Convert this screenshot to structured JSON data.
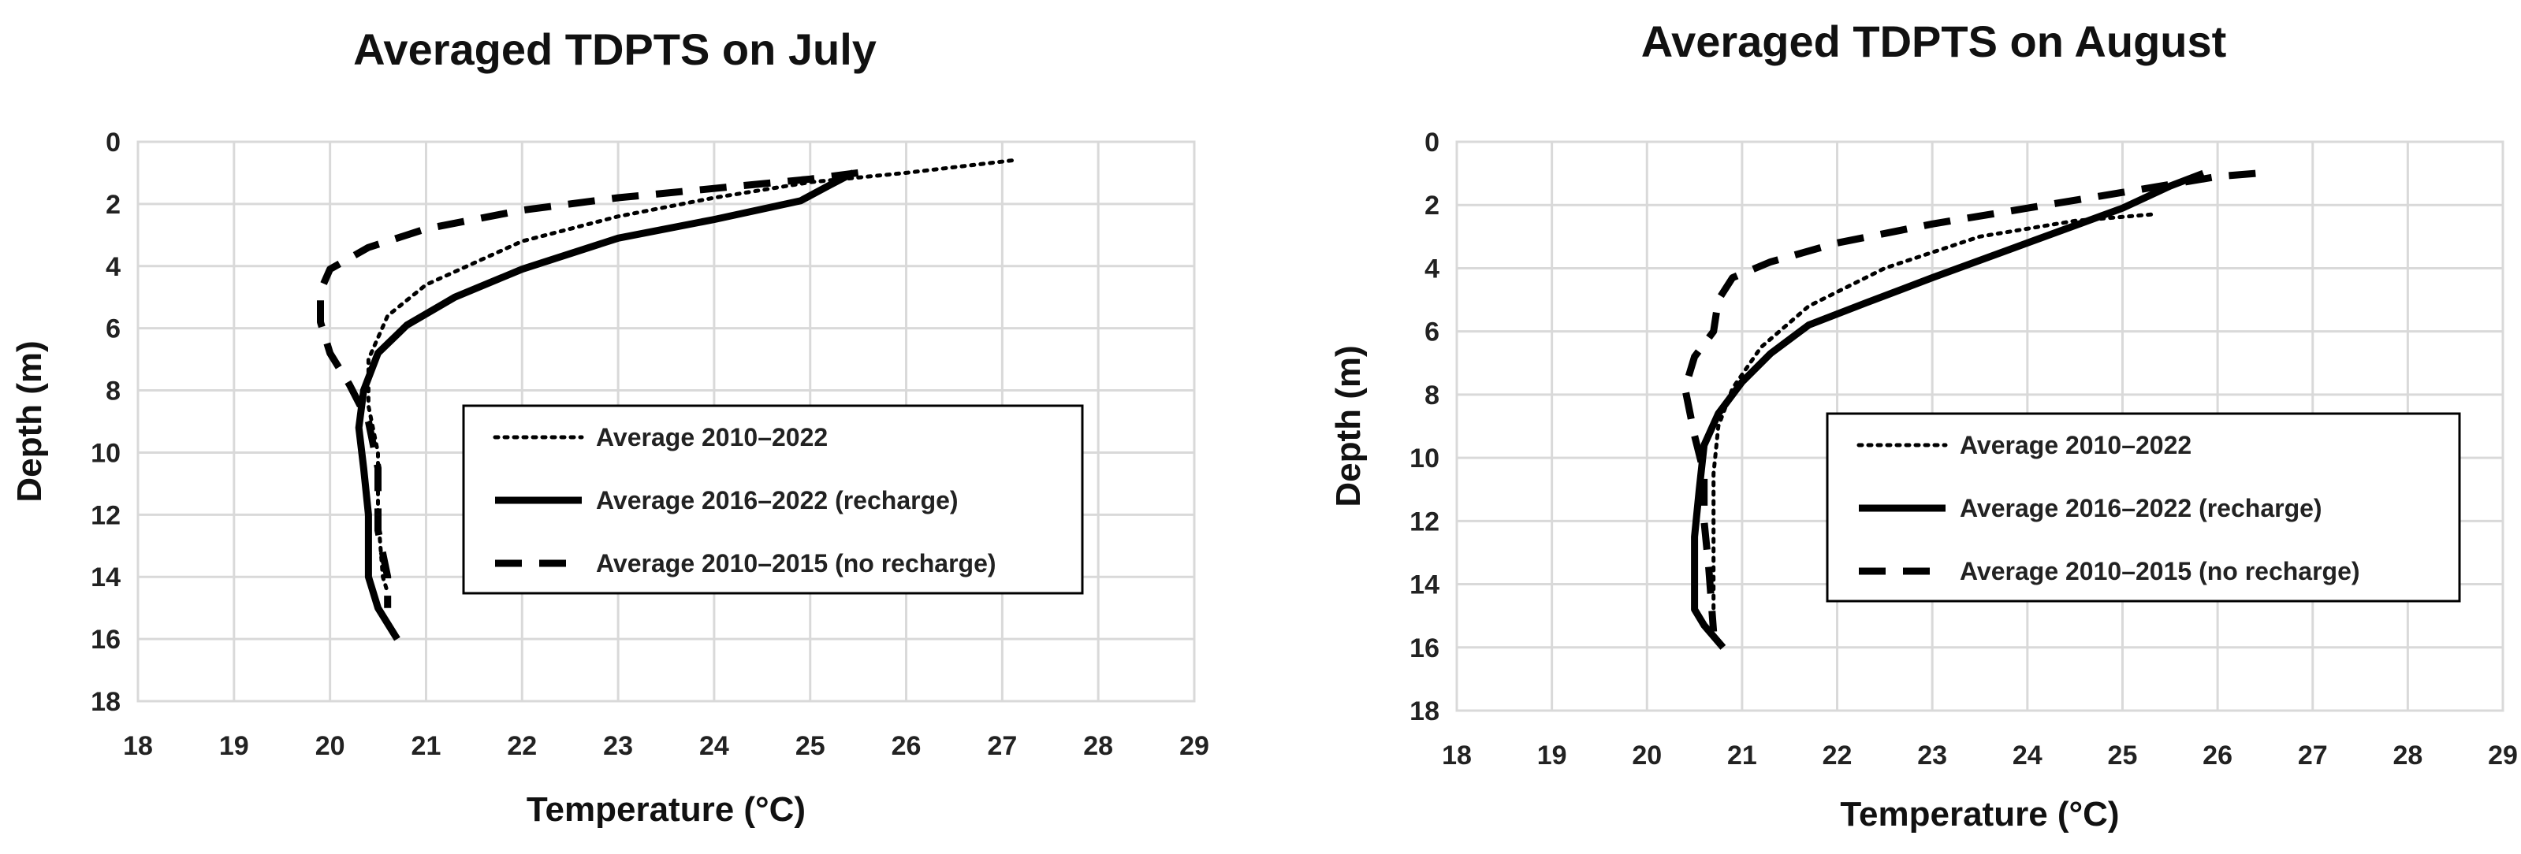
{
  "chart_data": [
    {
      "type": "line",
      "title": "Averaged TDPTS on July",
      "xlabel": "Temperature (°C)",
      "ylabel": "Depth (m)",
      "xlim": [
        18,
        29
      ],
      "ylim": [
        0,
        18
      ],
      "y_inverted": true,
      "x_ticks": [
        "18",
        "19",
        "20",
        "21",
        "22",
        "23",
        "24",
        "25",
        "26",
        "27",
        "28",
        "29"
      ],
      "y_ticks": [
        "0",
        "2",
        "4",
        "6",
        "8",
        "10",
        "12",
        "14",
        "16",
        "18"
      ],
      "grid": true,
      "legend_position": "center-right",
      "series": [
        {
          "name": "Average 2010–2022",
          "style": "dotted",
          "points": [
            [
              27.1,
              0.6
            ],
            [
              26.0,
              1.0
            ],
            [
              25.0,
              1.3
            ],
            [
              24.0,
              1.8
            ],
            [
              23.0,
              2.4
            ],
            [
              22.0,
              3.2
            ],
            [
              21.5,
              3.9
            ],
            [
              21.0,
              4.6
            ],
            [
              20.6,
              5.6
            ],
            [
              20.4,
              7.0
            ],
            [
              20.4,
              8.5
            ],
            [
              20.5,
              10.0
            ],
            [
              20.5,
              12.0
            ],
            [
              20.55,
              14.0
            ],
            [
              20.6,
              14.5
            ]
          ]
        },
        {
          "name": "Average 2016–2022 (recharge)",
          "style": "solid",
          "points": [
            [
              25.45,
              1.0
            ],
            [
              25.2,
              1.4
            ],
            [
              24.9,
              1.9
            ],
            [
              24.0,
              2.5
            ],
            [
              23.0,
              3.1
            ],
            [
              22.0,
              4.1
            ],
            [
              21.3,
              5.0
            ],
            [
              20.8,
              5.9
            ],
            [
              20.5,
              6.8
            ],
            [
              20.35,
              8.0
            ],
            [
              20.3,
              9.2
            ],
            [
              20.35,
              10.5
            ],
            [
              20.4,
              12.0
            ],
            [
              20.4,
              14.0
            ],
            [
              20.5,
              15.0
            ],
            [
              20.7,
              16.0
            ]
          ]
        },
        {
          "name": "Average 2010–2015 (no recharge)",
          "style": "dashed",
          "points": [
            [
              25.5,
              1.0
            ],
            [
              25.0,
              1.2
            ],
            [
              24.0,
              1.5
            ],
            [
              23.0,
              1.8
            ],
            [
              22.0,
              2.2
            ],
            [
              21.0,
              2.8
            ],
            [
              20.4,
              3.4
            ],
            [
              20.0,
              4.1
            ],
            [
              19.9,
              4.8
            ],
            [
              19.9,
              5.8
            ],
            [
              20.0,
              6.8
            ],
            [
              20.2,
              7.8
            ],
            [
              20.4,
              9.0
            ],
            [
              20.5,
              10.5
            ],
            [
              20.5,
              12.5
            ],
            [
              20.6,
              14.0
            ],
            [
              20.6,
              15.0
            ]
          ]
        }
      ]
    },
    {
      "type": "line",
      "title": "Averaged TDPTS on August",
      "xlabel": "Temperature (°C)",
      "ylabel": "Depth (m)",
      "xlim": [
        18,
        29
      ],
      "ylim": [
        0,
        18
      ],
      "y_inverted": true,
      "x_ticks": [
        "18",
        "19",
        "20",
        "21",
        "22",
        "23",
        "24",
        "25",
        "26",
        "27",
        "28",
        "29"
      ],
      "y_ticks": [
        "0",
        "2",
        "4",
        "6",
        "8",
        "10",
        "12",
        "14",
        "16",
        "18"
      ],
      "grid": true,
      "legend_position": "center-right",
      "series": [
        {
          "name": "Average 2010–2022",
          "style": "dotted",
          "points": [
            [
              25.3,
              2.3
            ],
            [
              24.5,
              2.5
            ],
            [
              23.5,
              3.0
            ],
            [
              22.5,
              4.0
            ],
            [
              21.7,
              5.2
            ],
            [
              21.2,
              6.5
            ],
            [
              20.9,
              7.8
            ],
            [
              20.75,
              9.0
            ],
            [
              20.7,
              10.5
            ],
            [
              20.7,
              12.5
            ],
            [
              20.7,
              14.0
            ],
            [
              20.7,
              15.5
            ]
          ]
        },
        {
          "name": "Average 2016–2022 (recharge)",
          "style": "solid",
          "points": [
            [
              25.85,
              1.0
            ],
            [
              25.5,
              1.4
            ],
            [
              25.0,
              2.1
            ],
            [
              24.0,
              3.2
            ],
            [
              23.0,
              4.3
            ],
            [
              22.3,
              5.1
            ],
            [
              21.7,
              5.8
            ],
            [
              21.3,
              6.7
            ],
            [
              21.0,
              7.6
            ],
            [
              20.75,
              8.6
            ],
            [
              20.6,
              9.6
            ],
            [
              20.55,
              11.0
            ],
            [
              20.5,
              12.5
            ],
            [
              20.5,
              14.8
            ],
            [
              20.6,
              15.3
            ],
            [
              20.8,
              16.0
            ]
          ]
        },
        {
          "name": "Average 2010–2015 (no recharge)",
          "style": "dashed",
          "points": [
            [
              26.4,
              1.0
            ],
            [
              26.0,
              1.1
            ],
            [
              25.0,
              1.6
            ],
            [
              24.0,
              2.1
            ],
            [
              23.0,
              2.6
            ],
            [
              22.0,
              3.2
            ],
            [
              21.3,
              3.8
            ],
            [
              20.9,
              4.3
            ],
            [
              20.75,
              5.0
            ],
            [
              20.7,
              6.0
            ],
            [
              20.5,
              6.8
            ],
            [
              20.4,
              7.8
            ],
            [
              20.5,
              9.3
            ],
            [
              20.6,
              10.5
            ],
            [
              20.6,
              12.0
            ],
            [
              20.65,
              13.5
            ],
            [
              20.7,
              15.5
            ]
          ]
        }
      ]
    }
  ]
}
